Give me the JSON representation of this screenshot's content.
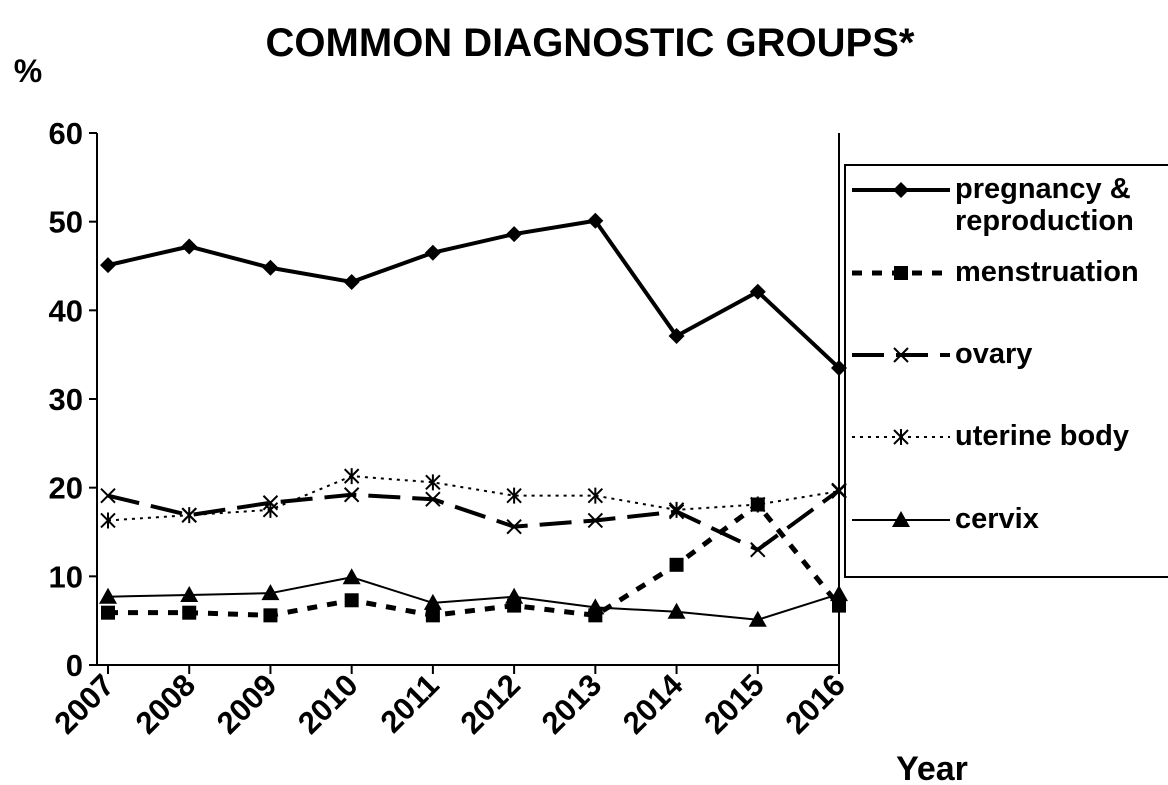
{
  "chart_data": {
    "type": "line",
    "title": "COMMON DIAGNOSTIC GROUPS*",
    "y_label": "%",
    "x_label": "Year",
    "categories": [
      "2007",
      "2008",
      "2009",
      "2010",
      "2011",
      "2012",
      "2013",
      "2014",
      "2015",
      "2016"
    ],
    "ylim": [
      0,
      60
    ],
    "yticks": [
      0,
      10,
      20,
      30,
      40,
      50,
      60
    ],
    "legend": "right",
    "series": [
      {
        "name": "pregnancy & reproduction",
        "color": "#000000",
        "line_style": "solid",
        "marker": "diamond",
        "values": [
          45.1,
          47.2,
          44.8,
          43.2,
          46.5,
          48.6,
          50.1,
          37.1,
          42.1,
          33.5
        ]
      },
      {
        "name": "menstruation",
        "color": "#000000",
        "line_style": "dash",
        "marker": "square",
        "values": [
          5.9,
          5.9,
          5.6,
          7.3,
          5.6,
          6.7,
          5.6,
          11.3,
          18.1,
          6.7
        ]
      },
      {
        "name": "ovary",
        "color": "#000000",
        "line_style": "longdash",
        "marker": "x",
        "values": [
          19.1,
          16.9,
          18.3,
          19.2,
          18.7,
          15.6,
          16.3,
          17.3,
          13.0,
          19.7
        ]
      },
      {
        "name": "uterine body",
        "color": "#000000",
        "line_style": "dot",
        "marker": "star",
        "values": [
          16.3,
          16.9,
          17.5,
          21.3,
          20.6,
          19.1,
          19.1,
          17.5,
          18.1,
          19.6
        ]
      },
      {
        "name": "cervix",
        "color": "#000000",
        "line_style": "thin",
        "marker": "triangle",
        "values": [
          7.7,
          7.9,
          8.1,
          9.9,
          7.0,
          7.7,
          6.5,
          6.0,
          5.1,
          8.0
        ]
      }
    ]
  }
}
